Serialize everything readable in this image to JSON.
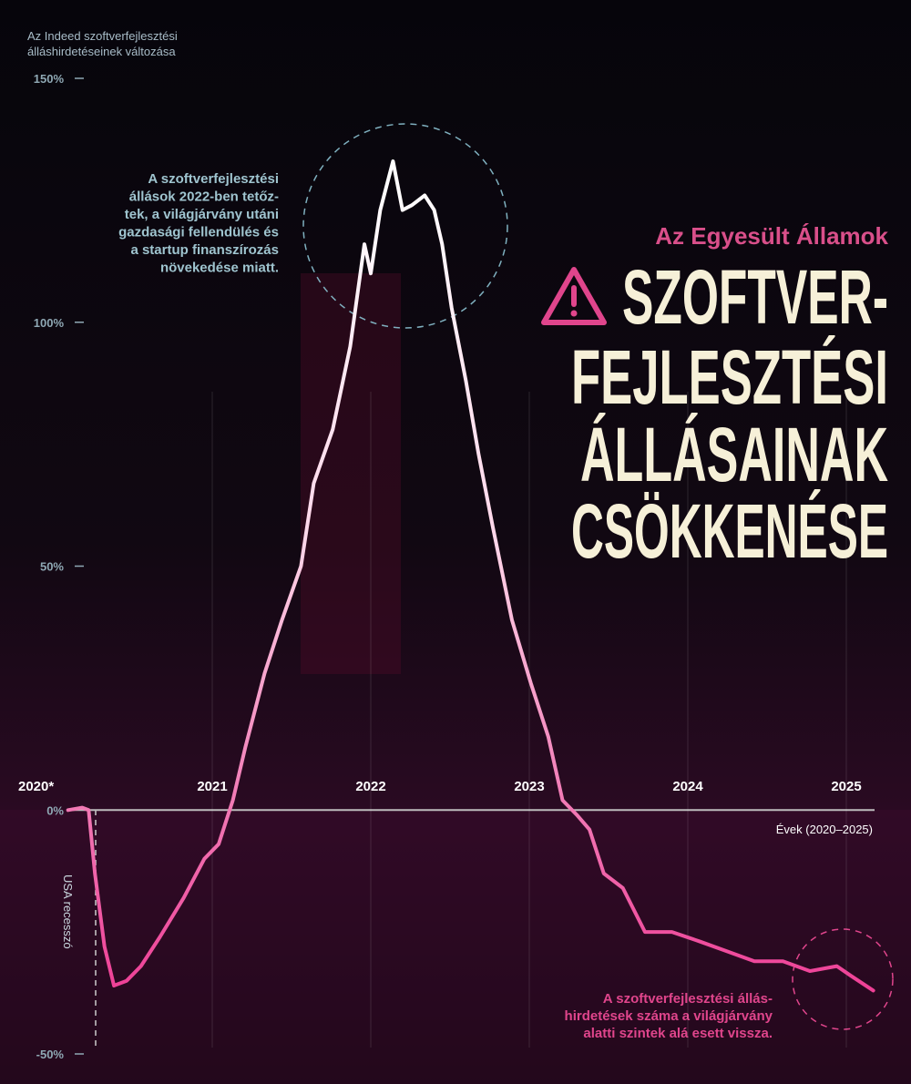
{
  "chart_data": {
    "type": "line",
    "y_axis_title": [
      "Az Indeed szoftverfejlesztési",
      "álláshirdetéseinek változása"
    ],
    "x_axis_title": "Évek (2020–2025)",
    "region": "Az Egyesült Államok",
    "title": [
      "SZOFTVER-",
      "FEJLESZTÉSI",
      "ÁLLÁSAINAK",
      "CSÖKKENÉSE"
    ],
    "recession_label": "USA recesszó",
    "annotations": [
      [
        "A szoftverfejlesztési",
        "állások 2022-ben tetőz-",
        "tek, a világjárvány utáni",
        "gazdasági fellendülés és",
        "a startup finanszírozás",
        "növekedése miatt."
      ],
      [
        "A szoftverfejlesztési állás-",
        "hirdetések száma a világjárvány",
        "alatti szintek alá esett vissza."
      ]
    ],
    "xlim": [
      2020,
      2025.25
    ],
    "xticks": [
      {
        "value": 2020,
        "label": "2020*"
      },
      2021,
      2022,
      2023,
      2024,
      2025
    ],
    "ylim": [
      -50,
      150
    ],
    "yticks": [
      {
        "value": -50,
        "label": "-50%"
      },
      {
        "value": 0,
        "label": "0%"
      },
      {
        "value": 50,
        "label": "50%"
      },
      {
        "value": 100,
        "label": "100%"
      },
      {
        "value": 150,
        "label": "150%"
      }
    ],
    "series": [
      {
        "x": [
          2020.09,
          2020.18,
          2020.22,
          2020.26,
          2020.32,
          2020.38,
          2020.46,
          2020.55,
          2020.67,
          2020.82,
          2020.95,
          2021.04,
          2021.13,
          2021.21,
          2021.33,
          2021.44,
          2021.56,
          2021.64,
          2021.76,
          2021.87,
          2021.96,
          2022.0,
          2022.06,
          2022.14,
          2022.2,
          2022.26,
          2022.34,
          2022.4,
          2022.45,
          2022.51,
          2022.6,
          2022.68,
          2022.77,
          2022.89,
          2023.01,
          2023.12,
          2023.21,
          2023.3,
          2023.38,
          2023.47,
          2023.59,
          2023.73,
          2023.9,
          2024.08,
          2024.25,
          2024.42,
          2024.6,
          2024.77,
          2024.94,
          2025.03,
          2025.17
        ],
        "values": [
          0,
          0.5,
          0,
          -13,
          -28,
          -36,
          -35,
          -32,
          -26,
          -18,
          -10,
          -7,
          2,
          13,
          28,
          39,
          50,
          67,
          78,
          95,
          116,
          110,
          123,
          133,
          123,
          124,
          126,
          123,
          116,
          103,
          88,
          73,
          58,
          39,
          26,
          15,
          2,
          -1,
          -4,
          -13,
          -16,
          -25,
          -25,
          -27,
          -29,
          -31,
          -31,
          -33,
          -32,
          -34,
          -37
        ],
        "color": "#ffffff"
      }
    ]
  }
}
